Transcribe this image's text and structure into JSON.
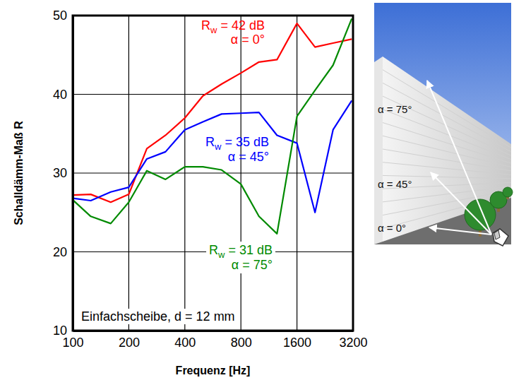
{
  "chart_data": {
    "type": "line",
    "x_label": "Frequenz [Hz]",
    "y_label": "Schalldämm-Maß R",
    "x": [
      100,
      125,
      160,
      200,
      250,
      315,
      400,
      500,
      630,
      800,
      1000,
      1250,
      1600,
      2000,
      2500,
      3150
    ],
    "series": [
      {
        "name": "α = 0°",
        "label": "Rw = 42 dB",
        "color": "#ff0000",
        "values": [
          27.2,
          27.3,
          26.3,
          27.3,
          33.1,
          34.8,
          37.0,
          39.8,
          41.3,
          42.7,
          44.1,
          44.4,
          49.0,
          46.0,
          46.5,
          47.0
        ]
      },
      {
        "name": "α = 45°",
        "label": "Rw = 35 dB",
        "color": "#0000ff",
        "values": [
          26.8,
          26.5,
          27.6,
          28.2,
          31.8,
          32.7,
          35.5,
          36.5,
          37.5,
          37.6,
          37.7,
          34.8,
          33.8,
          25.0,
          35.5,
          39.2
        ]
      },
      {
        "name": "α = 75°",
        "label": "Rw = 31 dB",
        "color": "#008a00",
        "values": [
          26.6,
          24.5,
          23.6,
          26.3,
          30.3,
          29.2,
          30.8,
          30.8,
          30.4,
          28.6,
          24.5,
          22.3,
          37.2,
          40.5,
          43.7,
          49.6
        ]
      }
    ],
    "xlim": [
      100,
      3200
    ],
    "xticks": [
      100,
      200,
      400,
      800,
      1600,
      3200
    ],
    "ylim": [
      10,
      50
    ],
    "yticks": [
      10,
      20,
      30,
      40,
      50
    ],
    "log": "x",
    "grid": true,
    "annotations": [
      "Einfachscheibe, d = 12 mm"
    ]
  },
  "illustration": {
    "labels": [
      "α = 75°",
      "α = 45°",
      "α = 0°"
    ]
  }
}
